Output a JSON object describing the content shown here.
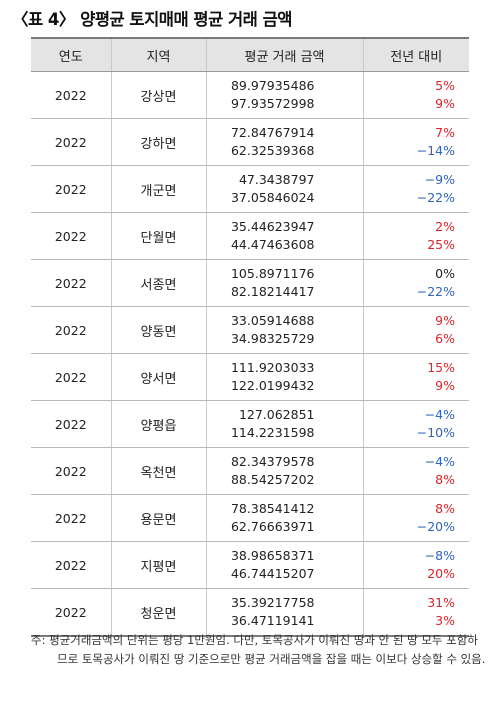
{
  "title": "〈표 4〉 양평균 토지매매 평균 거래 금액",
  "table": {
    "headers": [
      "연도",
      "지역",
      "평균 거래 금액",
      "전년 대비"
    ],
    "rows": [
      {
        "year": "2022",
        "region": "강상면",
        "price1": "89.97935486",
        "price2": "97.93572998",
        "change1": "5%",
        "change2": "9%",
        "dir1": "pos",
        "dir2": "pos"
      },
      {
        "year": "2022",
        "region": "강하면",
        "price1": "72.84767914",
        "price2": "62.32539368",
        "change1": "7%",
        "change2": "−14%",
        "dir1": "pos",
        "dir2": "neg"
      },
      {
        "year": "2022",
        "region": "개군면",
        "price1": "47.3438797",
        "price2": "37.05846024",
        "change1": "−9%",
        "change2": "−22%",
        "dir1": "neg",
        "dir2": "neg"
      },
      {
        "year": "2022",
        "region": "단월면",
        "price1": "35.44623947",
        "price2": "44.47463608",
        "change1": "2%",
        "change2": "25%",
        "dir1": "pos",
        "dir2": "pos"
      },
      {
        "year": "2022",
        "region": "서종면",
        "price1": "105.8971176",
        "price2": "82.18214417",
        "change1": "0%",
        "change2": "−22%",
        "dir1": "zero",
        "dir2": "neg"
      },
      {
        "year": "2022",
        "region": "양동면",
        "price1": "33.05914688",
        "price2": "34.98325729",
        "change1": "9%",
        "change2": "6%",
        "dir1": "pos",
        "dir2": "pos"
      },
      {
        "year": "2022",
        "region": "양서면",
        "price1": "111.9203033",
        "price2": "122.0199432",
        "change1": "15%",
        "change2": "9%",
        "dir1": "pos",
        "dir2": "pos"
      },
      {
        "year": "2022",
        "region": "양평읍",
        "price1": "127.062851",
        "price2": "114.2231598",
        "change1": "−4%",
        "change2": "−10%",
        "dir1": "neg",
        "dir2": "neg"
      },
      {
        "year": "2022",
        "region": "옥천면",
        "price1": "82.34379578",
        "price2": "88.54257202",
        "change1": "−4%",
        "change2": "8%",
        "dir1": "neg",
        "dir2": "pos"
      },
      {
        "year": "2022",
        "region": "용문면",
        "price1": "78.38541412",
        "price2": "62.76663971",
        "change1": "8%",
        "change2": "−20%",
        "dir1": "pos",
        "dir2": "neg"
      },
      {
        "year": "2022",
        "region": "지평면",
        "price1": "38.98658371",
        "price2": "46.74415207",
        "change1": "−8%",
        "change2": "20%",
        "dir1": "neg",
        "dir2": "pos"
      },
      {
        "year": "2022",
        "region": "청운면",
        "price1": "35.39217758",
        "price2": "36.47119141",
        "change1": "31%",
        "change2": "3%",
        "dir1": "pos",
        "dir2": "pos"
      }
    ]
  },
  "note": "주: 평균거래금액의 단위는 평당 1만원임. 다만, 토목공사가 이뤄진 땅과 안 된 땅 모두 포함하므로 토목공사가 이뤄진 땅 기준으로만 평균 거래금액을 잡을 때는 이보다 상승할 수 있음.",
  "colors": {
    "positive": "#d9262c",
    "negative": "#2e65b5",
    "header_bg": "#e4e4e4"
  }
}
